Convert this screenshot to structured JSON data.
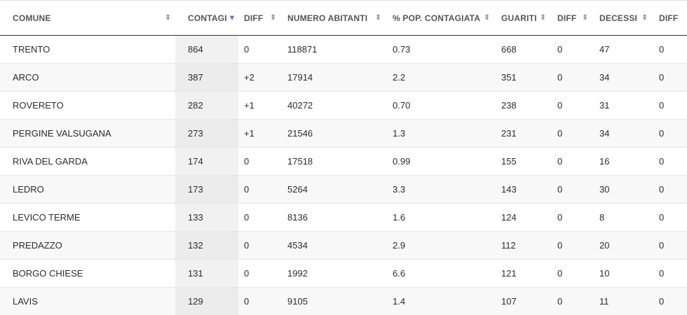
{
  "table": {
    "headers": [
      {
        "label": "COMUNE"
      },
      {
        "label": "CONTAGI",
        "sort": "desc"
      },
      {
        "label": "DIFF"
      },
      {
        "label": "NUMERO ABITANTI"
      },
      {
        "label": "% POP. CONTAGIATA"
      },
      {
        "label": "GUARITI"
      },
      {
        "label": "DIFF"
      },
      {
        "label": "DECESSI"
      },
      {
        "label": "DIFF"
      }
    ],
    "rows": [
      [
        "TRENTO",
        "864",
        "0",
        "118871",
        "0.73",
        "668",
        "0",
        "47",
        "0"
      ],
      [
        "ARCO",
        "387",
        "+2",
        "17914",
        "2.2",
        "351",
        "0",
        "34",
        "0"
      ],
      [
        "ROVERETO",
        "282",
        "+1",
        "40272",
        "0.70",
        "238",
        "0",
        "31",
        "0"
      ],
      [
        "PERGINE VALSUGANA",
        "273",
        "+1",
        "21546",
        "1.3",
        "231",
        "0",
        "34",
        "0"
      ],
      [
        "RIVA DEL GARDA",
        "174",
        "0",
        "17518",
        "0.99",
        "155",
        "0",
        "16",
        "0"
      ],
      [
        "LEDRO",
        "173",
        "0",
        "5264",
        "3.3",
        "143",
        "0",
        "30",
        "0"
      ],
      [
        "LEVICO TERME",
        "133",
        "0",
        "8136",
        "1.6",
        "124",
        "0",
        "8",
        "0"
      ],
      [
        "PREDAZZO",
        "132",
        "0",
        "4534",
        "2.9",
        "112",
        "0",
        "20",
        "0"
      ],
      [
        "BORGO CHIESE",
        "131",
        "0",
        "1992",
        "6.6",
        "121",
        "0",
        "10",
        "0"
      ],
      [
        "LAVIS",
        "129",
        "0",
        "9105",
        "1.4",
        "107",
        "0",
        "11",
        "0"
      ]
    ],
    "sort_icon": "sort-updown-icon",
    "sort_active_icon": "sort-desc-icon"
  }
}
